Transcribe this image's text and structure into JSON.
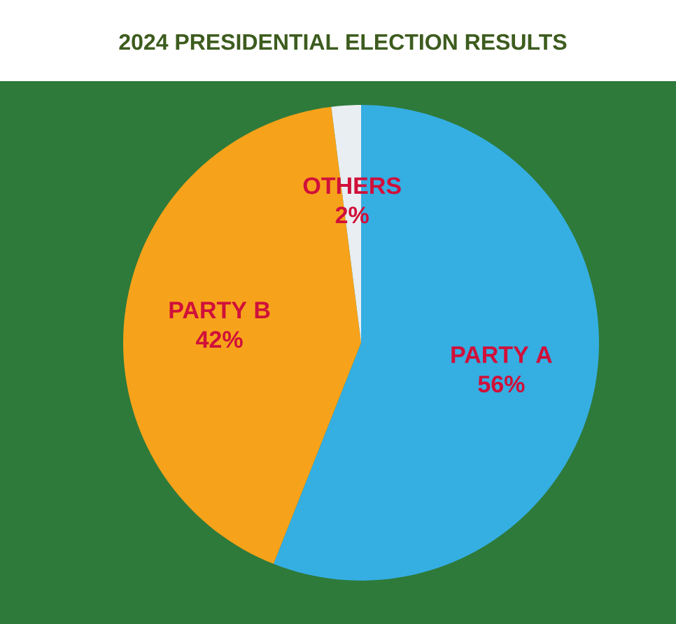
{
  "chart_data": {
    "type": "pie",
    "title": "2024 PRESIDENTIAL ELECTION RESULTS",
    "categories": [
      "PARTY A",
      "PARTY B",
      "OTHERS"
    ],
    "values": [
      56,
      42,
      2
    ],
    "value_labels": [
      "56%",
      "42%",
      "2%"
    ],
    "colors": [
      "#35aee2",
      "#f7a21b",
      "#e9eef2"
    ]
  }
}
